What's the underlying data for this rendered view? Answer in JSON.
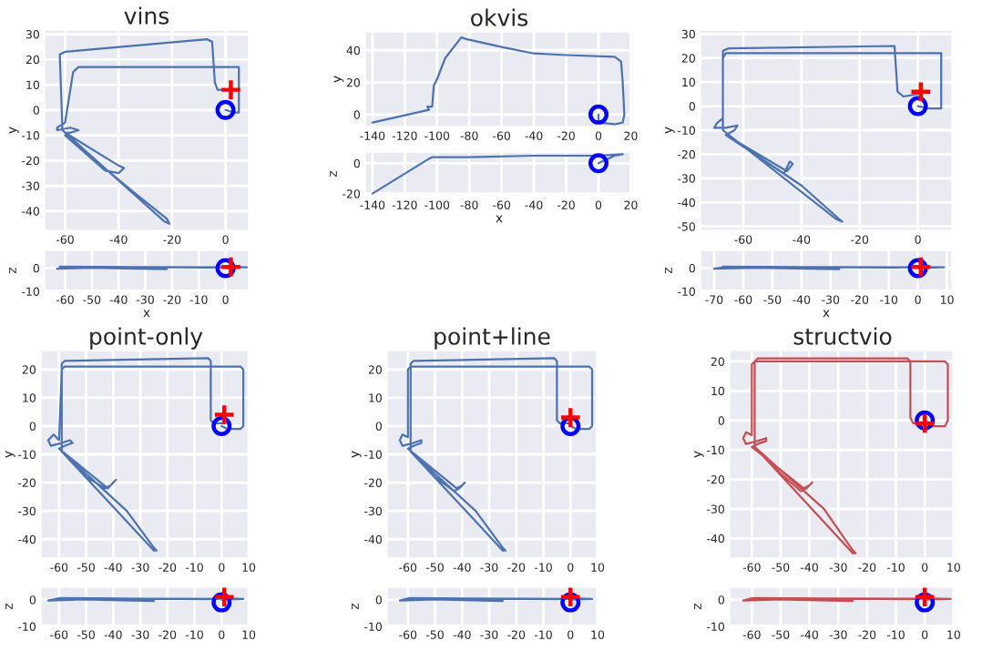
{
  "chart_data": [
    {
      "type": "line",
      "title": "vins",
      "ylabel": "y",
      "xlim": [
        -68,
        9
      ],
      "xticks": [
        -60,
        -40,
        -20,
        0
      ],
      "ylim": [
        -48,
        32
      ],
      "yticks": [
        -40,
        -30,
        -20,
        -10,
        0,
        10,
        20,
        30
      ],
      "grid": true,
      "legend": false,
      "series": [
        {
          "type": "line",
          "color": "#4c72b0",
          "x": [
            0,
            3,
            5,
            5,
            -55,
            -57,
            -60,
            -63,
            -63,
            -58,
            -55,
            -58,
            -60,
            -40,
            -38,
            -40,
            -45,
            -60,
            -35,
            -22,
            -21,
            -23,
            -61,
            -62,
            -60,
            -7,
            -5,
            -4,
            -3,
            0
          ],
          "values": [
            0,
            -1,
            -1,
            17,
            17,
            15,
            -5,
            -7,
            -8,
            -7,
            -8,
            -9,
            -9,
            -22,
            -23,
            -25,
            -24,
            -10,
            -32,
            -43,
            -45,
            -44,
            -8,
            22,
            23,
            28,
            27,
            11,
            8,
            8
          ]
        },
        {
          "type": "scatter",
          "marker": "circle",
          "color": "#0000ff",
          "x": [
            0
          ],
          "values": [
            0
          ]
        },
        {
          "type": "scatter",
          "marker": "cross",
          "color": "#ff0000",
          "x": [
            2
          ],
          "values": [
            8
          ]
        }
      ]
    },
    {
      "type": "line",
      "xlabel": "x",
      "ylabel": "z",
      "xlim": [
        -68,
        9
      ],
      "xticks": [
        -60,
        -50,
        -40,
        -30,
        -20,
        -10,
        0
      ],
      "ylim": [
        -10,
        8
      ],
      "yticks": [
        -10,
        0
      ],
      "grid": true,
      "legend": false,
      "series": [
        {
          "type": "line",
          "color": "#4c72b0",
          "x": [
            0,
            5,
            -60,
            -63,
            -40,
            -22,
            -61,
            -62,
            -5,
            2,
            8
          ],
          "values": [
            0,
            0.3,
            0.5,
            -0.3,
            0.4,
            -0.5,
            0.3,
            0.6,
            0.2,
            0.5,
            0.3
          ]
        },
        {
          "type": "scatter",
          "marker": "circle",
          "color": "#0000ff",
          "x": [
            0
          ],
          "values": [
            0
          ]
        },
        {
          "type": "scatter",
          "marker": "cross",
          "color": "#ff0000",
          "x": [
            2
          ],
          "values": [
            0.5
          ]
        }
      ]
    },
    {
      "type": "line",
      "title": "okvis",
      "ylabel": "y",
      "xlim": [
        -145,
        22
      ],
      "xticks": [
        -140,
        -120,
        -100,
        -80,
        -60,
        -40,
        -20,
        0,
        20
      ],
      "ylim": [
        -8,
        52
      ],
      "yticks": [
        0,
        20,
        40
      ],
      "grid": true,
      "legend": false,
      "series": [
        {
          "type": "line",
          "color": "#4c72b0",
          "x": [
            -140,
            -105,
            -106,
            -103,
            -102,
            -100,
            -95,
            -85,
            -82,
            -60,
            -40,
            -20,
            10,
            14,
            15,
            16,
            15,
            10,
            0,
            0
          ],
          "values": [
            -5,
            3,
            5,
            5,
            18,
            22,
            35,
            48,
            47,
            42,
            38,
            37,
            36,
            33,
            20,
            0,
            -5,
            -6,
            -5,
            0
          ]
        },
        {
          "type": "scatter",
          "marker": "circle",
          "color": "#0000ff",
          "x": [
            0
          ],
          "values": [
            0
          ]
        }
      ]
    },
    {
      "type": "line",
      "xlabel": "x",
      "ylabel": "z",
      "xlim": [
        -145,
        22
      ],
      "xticks": [
        -140,
        -120,
        -100,
        -80,
        -60,
        -40,
        -20,
        0,
        20
      ],
      "ylim": [
        -22,
        8
      ],
      "yticks": [
        -20,
        0
      ],
      "grid": true,
      "legend": false,
      "series": [
        {
          "type": "line",
          "color": "#4c72b0",
          "x": [
            -140,
            -105,
            -103,
            -80,
            -40,
            0,
            15,
            10,
            0
          ],
          "values": [
            -20,
            3,
            4,
            4,
            5,
            5,
            6,
            5,
            0
          ]
        },
        {
          "type": "scatter",
          "marker": "circle",
          "color": "#0000ff",
          "x": [
            0
          ],
          "values": [
            0
          ]
        }
      ]
    },
    {
      "type": "line",
      "ylabel": "y",
      "xlim": [
        -75,
        12
      ],
      "xticks": [
        -60,
        -40,
        -20,
        0
      ],
      "ylim": [
        -52,
        32
      ],
      "yticks": [
        -50,
        -40,
        -30,
        -20,
        -10,
        0,
        10,
        20,
        30
      ],
      "grid": true,
      "legend": false,
      "series": [
        {
          "type": "line",
          "color": "#4c72b0",
          "x": [
            0,
            4,
            8,
            8,
            -66,
            -67,
            -67,
            -69,
            -70,
            -66,
            -62,
            -63,
            -66,
            -45,
            -43,
            -44,
            -46,
            -66,
            -40,
            -27,
            -26,
            -28,
            -67,
            -67,
            -65,
            -8,
            -8,
            -7,
            -5,
            0,
            1
          ],
          "values": [
            0,
            -1,
            -1,
            22,
            22,
            20,
            -5,
            -7,
            -9,
            -9,
            -8,
            -10,
            -12,
            -27,
            -24,
            -23,
            -28,
            -12,
            -33,
            -47,
            -48,
            -47,
            -10,
            23,
            24,
            25,
            24,
            6,
            4,
            5,
            6
          ]
        },
        {
          "type": "scatter",
          "marker": "circle",
          "color": "#0000ff",
          "x": [
            0
          ],
          "values": [
            0
          ]
        },
        {
          "type": "scatter",
          "marker": "cross",
          "color": "#ff0000",
          "x": [
            1
          ],
          "values": [
            6
          ]
        }
      ]
    },
    {
      "type": "line",
      "xlabel": "x",
      "ylabel": "z",
      "xlim": [
        -75,
        12
      ],
      "xticks": [
        -70,
        -60,
        -50,
        -40,
        -30,
        -20,
        -10,
        0,
        10
      ],
      "ylim": [
        -10,
        8
      ],
      "yticks": [
        -10,
        0
      ],
      "grid": true,
      "legend": false,
      "series": [
        {
          "type": "line",
          "color": "#4c72b0",
          "x": [
            0,
            8,
            -66,
            -70,
            -45,
            -27,
            -67,
            -67,
            -8,
            1,
            9
          ],
          "values": [
            0,
            0.3,
            0.5,
            -0.3,
            0.4,
            -0.5,
            0.3,
            0.6,
            0.2,
            0.5,
            0.3
          ]
        },
        {
          "type": "scatter",
          "marker": "circle",
          "color": "#0000ff",
          "x": [
            0
          ],
          "values": [
            0
          ]
        },
        {
          "type": "scatter",
          "marker": "cross",
          "color": "#ff0000",
          "x": [
            1
          ],
          "values": [
            0.5
          ]
        }
      ]
    },
    {
      "type": "line",
      "title": "point-only",
      "ylabel": "y",
      "xlim": [
        -67,
        11
      ],
      "xticks": [
        -60,
        -50,
        -40,
        -30,
        -20,
        -10,
        0,
        10
      ],
      "ylim": [
        -47,
        27
      ],
      "yticks": [
        -40,
        -30,
        -20,
        -10,
        0,
        10,
        20
      ],
      "grid": true,
      "legend": false,
      "series": [
        {
          "type": "line",
          "color": "#4c72b0",
          "x": [
            0,
            2,
            7,
            8,
            8,
            7,
            -58,
            -59,
            -60,
            -62,
            -64,
            -63,
            -59,
            -56,
            -55,
            -58,
            -60,
            -42,
            -40,
            -39,
            -41,
            -43,
            -50,
            -59,
            -35,
            -25,
            -24,
            -25,
            -59,
            -59,
            -58,
            -5,
            -4,
            -4,
            -3,
            1,
            1
          ],
          "values": [
            0,
            -1,
            -1,
            0,
            20,
            21,
            21,
            20,
            -5,
            -3,
            -5,
            -7,
            -6,
            -5,
            -6,
            -7,
            -8,
            -22,
            -20,
            -19,
            -21,
            -22,
            -18,
            -9,
            -30,
            -43,
            -44,
            -44,
            -9,
            22,
            23,
            24,
            23,
            2,
            1,
            1,
            4
          ]
        },
        {
          "type": "scatter",
          "marker": "circle",
          "color": "#0000ff",
          "x": [
            0
          ],
          "values": [
            0
          ]
        },
        {
          "type": "scatter",
          "marker": "cross",
          "color": "#ff0000",
          "x": [
            1
          ],
          "values": [
            4
          ]
        }
      ]
    },
    {
      "type": "line",
      "ylabel": "z",
      "xlim": [
        -67,
        11
      ],
      "xticks": [
        -60,
        -50,
        -40,
        -30,
        -20,
        -10,
        0,
        10
      ],
      "ylim": [
        -10,
        5
      ],
      "yticks": [
        -10,
        0
      ],
      "grid": true,
      "legend": false,
      "series": [
        {
          "type": "line",
          "color": "#4c72b0",
          "x": [
            0,
            8,
            -60,
            -64,
            -40,
            -25,
            -59,
            -59,
            -5,
            1,
            8
          ],
          "values": [
            0,
            0.3,
            0.5,
            -0.3,
            0.4,
            -0.5,
            0.3,
            0.6,
            0.2,
            0.5,
            0.3
          ]
        },
        {
          "type": "scatter",
          "marker": "circle",
          "color": "#0000ff",
          "x": [
            0
          ],
          "values": [
            -1
          ]
        },
        {
          "type": "scatter",
          "marker": "cross",
          "color": "#ff0000",
          "x": [
            1
          ],
          "values": [
            1
          ]
        }
      ]
    },
    {
      "type": "line",
      "title": "point+line",
      "ylabel": "y",
      "xlim": [
        -68,
        10
      ],
      "xticks": [
        -60,
        -50,
        -40,
        -30,
        -20,
        -10,
        0,
        10
      ],
      "ylim": [
        -47,
        27
      ],
      "yticks": [
        -40,
        -30,
        -20,
        -10,
        0,
        10,
        20
      ],
      "grid": true,
      "legend": false,
      "series": [
        {
          "type": "line",
          "color": "#4c72b0",
          "x": [
            0,
            2,
            7,
            8,
            8,
            7,
            -59,
            -60,
            -60,
            -62,
            -63,
            -62,
            -58,
            -55,
            -55,
            -58,
            -60,
            -42,
            -40,
            -39,
            -41,
            -43,
            -50,
            -59,
            -35,
            -25,
            -24,
            -25,
            -59,
            -59,
            -58,
            -6,
            -5,
            -5,
            -4,
            0,
            0
          ],
          "values": [
            0,
            -1,
            -1,
            0,
            20,
            21,
            21,
            20,
            -4,
            -3,
            -5,
            -7,
            -6,
            -5,
            -6,
            -7,
            -8,
            -22,
            -21,
            -20,
            -22,
            -23,
            -18,
            -9,
            -30,
            -43,
            -44,
            -44,
            -9,
            22,
            23,
            24,
            23,
            2,
            1,
            1,
            3
          ]
        },
        {
          "type": "scatter",
          "marker": "circle",
          "color": "#0000ff",
          "x": [
            0
          ],
          "values": [
            0
          ]
        },
        {
          "type": "scatter",
          "marker": "cross",
          "color": "#ff0000",
          "x": [
            0
          ],
          "values": [
            3
          ]
        }
      ]
    },
    {
      "type": "line",
      "ylabel": "z",
      "xlim": [
        -68,
        10
      ],
      "xticks": [
        -60,
        -50,
        -40,
        -30,
        -20,
        -10,
        0,
        10
      ],
      "ylim": [
        -10,
        5
      ],
      "yticks": [
        -10,
        0
      ],
      "grid": true,
      "legend": false,
      "series": [
        {
          "type": "line",
          "color": "#4c72b0",
          "x": [
            0,
            8,
            -60,
            -63,
            -40,
            -25,
            -59,
            -59,
            -5,
            0,
            8
          ],
          "values": [
            0,
            0.3,
            0.5,
            -0.3,
            0.4,
            -0.5,
            0.3,
            0.6,
            0.2,
            0.5,
            0.3
          ]
        },
        {
          "type": "scatter",
          "marker": "circle",
          "color": "#0000ff",
          "x": [
            0
          ],
          "values": [
            -1
          ]
        },
        {
          "type": "scatter",
          "marker": "cross",
          "color": "#ff0000",
          "x": [
            0
          ],
          "values": [
            1
          ]
        }
      ]
    },
    {
      "type": "line",
      "title": "structvio",
      "ylabel": "y",
      "xlim": [
        -68,
        11
      ],
      "xticks": [
        -60,
        -50,
        -40,
        -30,
        -20,
        -10,
        0,
        10
      ],
      "ylim": [
        -47,
        24
      ],
      "yticks": [
        -40,
        -30,
        -20,
        -10,
        0,
        10,
        20
      ],
      "grid": true,
      "legend": false,
      "series": [
        {
          "type": "line",
          "color": "#c44e52",
          "x": [
            0,
            2,
            7,
            8,
            8,
            7,
            -59,
            -60,
            -60,
            -62,
            -63,
            -62,
            -58,
            -55,
            -55,
            -58,
            -60,
            -42,
            -40,
            -39,
            -41,
            -43,
            -50,
            -59,
            -35,
            -25,
            -24,
            -25,
            -59,
            -59,
            -58,
            -6,
            -5,
            -5,
            -4,
            0,
            0
          ],
          "values": [
            0,
            -2,
            -2,
            0,
            19,
            20,
            20,
            19,
            -5,
            -4,
            -6,
            -8,
            -7,
            -6,
            -7,
            -8,
            -9,
            -23,
            -22,
            -21,
            -23,
            -24,
            -18,
            -9,
            -30,
            -44,
            -45,
            -45,
            -9,
            20,
            21,
            21,
            20,
            1,
            -1,
            -1,
            -1
          ]
        },
        {
          "type": "scatter",
          "marker": "circle",
          "color": "#0000ff",
          "x": [
            0
          ],
          "values": [
            0
          ]
        },
        {
          "type": "scatter",
          "marker": "cross",
          "color": "#ff0000",
          "x": [
            0
          ],
          "values": [
            -1
          ]
        }
      ]
    },
    {
      "type": "line",
      "ylabel": "z",
      "xlim": [
        -68,
        11
      ],
      "xticks": [
        -60,
        -50,
        -40,
        -30,
        -20,
        -10,
        0,
        10
      ],
      "ylim": [
        -10,
        5
      ],
      "yticks": [
        -10,
        0
      ],
      "grid": true,
      "legend": false,
      "series": [
        {
          "type": "line",
          "color": "#c44e52",
          "x": [
            0,
            8,
            -60,
            -63,
            -40,
            -25,
            -59,
            -59,
            -5,
            0,
            9
          ],
          "values": [
            0,
            0.3,
            0.5,
            -0.3,
            0.4,
            -0.5,
            0.3,
            0.6,
            0.2,
            0.5,
            0.3
          ]
        },
        {
          "type": "scatter",
          "marker": "circle",
          "color": "#0000ff",
          "x": [
            0
          ],
          "values": [
            -1
          ]
        },
        {
          "type": "scatter",
          "marker": "cross",
          "color": "#ff0000",
          "x": [
            0
          ],
          "values": [
            1
          ]
        }
      ]
    }
  ]
}
